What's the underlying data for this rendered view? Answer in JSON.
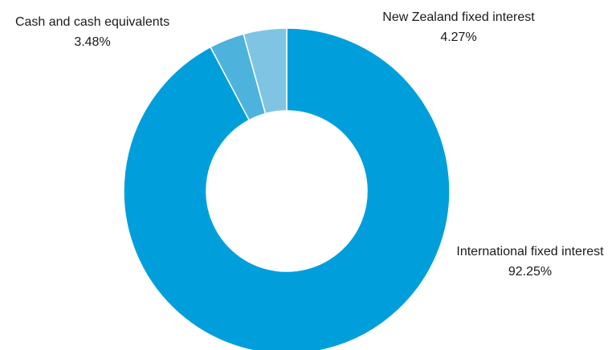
{
  "chart_data": {
    "type": "pie",
    "donut": true,
    "title": "",
    "legend": "none",
    "slices": [
      {
        "label": "International fixed interest",
        "value": 92.25,
        "value_label": "92.25%",
        "color": "#009fdb"
      },
      {
        "label": "Cash and cash equivalents",
        "value": 3.48,
        "value_label": "3.48%",
        "color": "#4db3dd"
      },
      {
        "label": "New Zealand fixed interest",
        "value": 4.27,
        "value_label": "4.27%",
        "color": "#80c4e3"
      }
    ]
  }
}
